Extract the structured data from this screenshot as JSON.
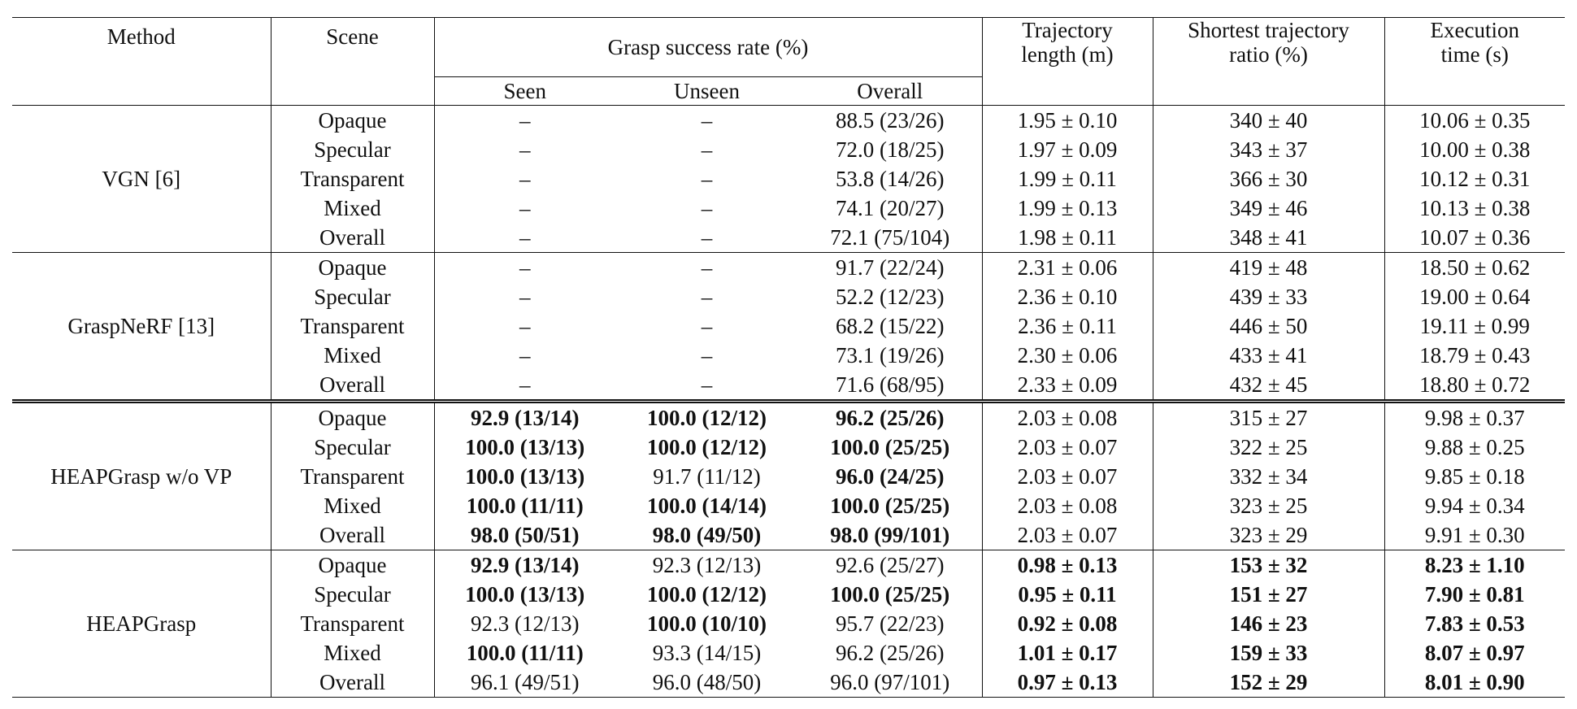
{
  "header": {
    "method": "Method",
    "scene": "Scene",
    "grasp": "Grasp success rate (%)",
    "seen": "Seen",
    "unseen": "Unseen",
    "overall": "Overall",
    "trajectory": [
      "Trajectory",
      "length (m)"
    ],
    "shortest": [
      "Shortest trajectory",
      "ratio (%)"
    ],
    "execution": [
      "Execution",
      "time (s)"
    ]
  },
  "groups": [
    {
      "method": "VGN [6]",
      "rows": [
        {
          "scene": "Opaque",
          "cells": [
            "–",
            "–",
            "88.5 (23/26)",
            "1.95 ± 0.10",
            "340 ± 40",
            "10.06 ± 0.35"
          ],
          "bold": []
        },
        {
          "scene": "Specular",
          "cells": [
            "–",
            "–",
            "72.0 (18/25)",
            "1.97 ± 0.09",
            "343 ± 37",
            "10.00 ± 0.38"
          ],
          "bold": []
        },
        {
          "scene": "Transparent",
          "cells": [
            "–",
            "–",
            "53.8 (14/26)",
            "1.99 ± 0.11",
            "366 ± 30",
            "10.12 ± 0.31"
          ],
          "bold": []
        },
        {
          "scene": "Mixed",
          "cells": [
            "–",
            "–",
            "74.1 (20/27)",
            "1.99 ± 0.13",
            "349 ± 46",
            "10.13 ± 0.38"
          ],
          "bold": []
        },
        {
          "scene": "Overall",
          "cells": [
            "–",
            "–",
            "72.1 (75/104)",
            "1.98 ± 0.11",
            "348 ± 41",
            "10.07 ± 0.36"
          ],
          "bold": []
        }
      ]
    },
    {
      "method": "GraspNeRF [13]",
      "rows": [
        {
          "scene": "Opaque",
          "cells": [
            "–",
            "–",
            "91.7 (22/24)",
            "2.31 ± 0.06",
            "419 ± 48",
            "18.50 ± 0.62"
          ],
          "bold": []
        },
        {
          "scene": "Specular",
          "cells": [
            "–",
            "–",
            "52.2 (12/23)",
            "2.36 ± 0.10",
            "439 ± 33",
            "19.00 ± 0.64"
          ],
          "bold": []
        },
        {
          "scene": "Transparent",
          "cells": [
            "–",
            "–",
            "68.2 (15/22)",
            "2.36 ± 0.11",
            "446 ± 50",
            "19.11 ± 0.99"
          ],
          "bold": []
        },
        {
          "scene": "Mixed",
          "cells": [
            "–",
            "–",
            "73.1 (19/26)",
            "2.30 ± 0.06",
            "433 ± 41",
            "18.79 ± 0.43"
          ],
          "bold": []
        },
        {
          "scene": "Overall",
          "cells": [
            "–",
            "–",
            "71.6 (68/95)",
            "2.33 ± 0.09",
            "432 ± 45",
            "18.80 ± 0.72"
          ],
          "bold": []
        }
      ]
    },
    {
      "method": "HEAPGrasp w/o VP",
      "rows": [
        {
          "scene": "Opaque",
          "cells": [
            "92.9 (13/14)",
            "100.0 (12/12)",
            "96.2 (25/26)",
            "2.03 ± 0.08",
            "315 ± 27",
            "9.98 ± 0.37"
          ],
          "bold": [
            0,
            1,
            2
          ]
        },
        {
          "scene": "Specular",
          "cells": [
            "100.0 (13/13)",
            "100.0 (12/12)",
            "100.0 (25/25)",
            "2.03 ± 0.07",
            "322 ± 25",
            "9.88 ± 0.25"
          ],
          "bold": [
            0,
            1,
            2
          ]
        },
        {
          "scene": "Transparent",
          "cells": [
            "100.0 (13/13)",
            "91.7 (11/12)",
            "96.0 (24/25)",
            "2.03 ± 0.07",
            "332 ± 34",
            "9.85 ± 0.18"
          ],
          "bold": [
            0,
            2
          ]
        },
        {
          "scene": "Mixed",
          "cells": [
            "100.0 (11/11)",
            "100.0 (14/14)",
            "100.0 (25/25)",
            "2.03 ± 0.08",
            "323 ± 25",
            "9.94 ± 0.34"
          ],
          "bold": [
            0,
            1,
            2
          ]
        },
        {
          "scene": "Overall",
          "cells": [
            "98.0 (50/51)",
            "98.0 (49/50)",
            "98.0 (99/101)",
            "2.03 ± 0.07",
            "323 ± 29",
            "9.91 ± 0.30"
          ],
          "bold": [
            0,
            1,
            2
          ]
        }
      ]
    },
    {
      "method": "HEAPGrasp",
      "rows": [
        {
          "scene": "Opaque",
          "cells": [
            "92.9 (13/14)",
            "92.3 (12/13)",
            "92.6 (25/27)",
            "0.98 ± 0.13",
            "153 ± 32",
            "8.23 ± 1.10"
          ],
          "bold": [
            0,
            3,
            4,
            5
          ]
        },
        {
          "scene": "Specular",
          "cells": [
            "100.0 (13/13)",
            "100.0 (12/12)",
            "100.0 (25/25)",
            "0.95 ± 0.11",
            "151 ± 27",
            "7.90 ± 0.81"
          ],
          "bold": [
            0,
            1,
            2,
            3,
            4,
            5
          ]
        },
        {
          "scene": "Transparent",
          "cells": [
            "92.3 (12/13)",
            "100.0 (10/10)",
            "95.7 (22/23)",
            "0.92 ± 0.08",
            "146 ± 23",
            "7.83 ± 0.53"
          ],
          "bold": [
            1,
            3,
            4,
            5
          ]
        },
        {
          "scene": "Mixed",
          "cells": [
            "100.0 (11/11)",
            "93.3 (14/15)",
            "96.2 (25/26)",
            "1.01 ± 0.17",
            "159 ± 33",
            "8.07 ± 0.97"
          ],
          "bold": [
            0,
            3,
            4,
            5
          ]
        },
        {
          "scene": "Overall",
          "cells": [
            "96.1 (49/51)",
            "96.0 (48/50)",
            "96.0 (97/101)",
            "0.97 ± 0.13",
            "152 ± 29",
            "8.01 ± 0.90"
          ],
          "bold": [
            3,
            4,
            5
          ]
        }
      ]
    }
  ]
}
